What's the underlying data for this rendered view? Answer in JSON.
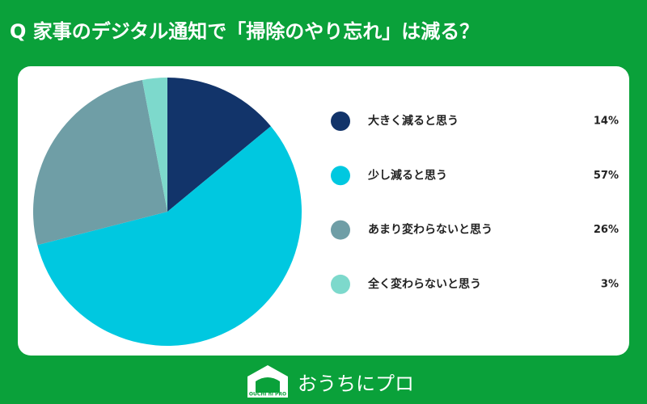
{
  "chart_data": {
    "type": "pie",
    "title": "Q 家事のデジタル通知で「掃除のやり忘れ」は減る？",
    "categories": [
      "大きく減ると思う",
      "少し減ると思う",
      "あまり変わらないと思う",
      "全く変わらないと思う"
    ],
    "values": [
      14,
      57,
      26,
      3
    ],
    "value_labels": [
      "14%",
      "57%",
      "26%",
      "3%"
    ],
    "colors": [
      "#12346a",
      "#00c8e0",
      "#6f9ea6",
      "#7dd9cc"
    ]
  },
  "logo": {
    "text": "おうちにプロ",
    "mark": "OUCHI ni PRO"
  }
}
